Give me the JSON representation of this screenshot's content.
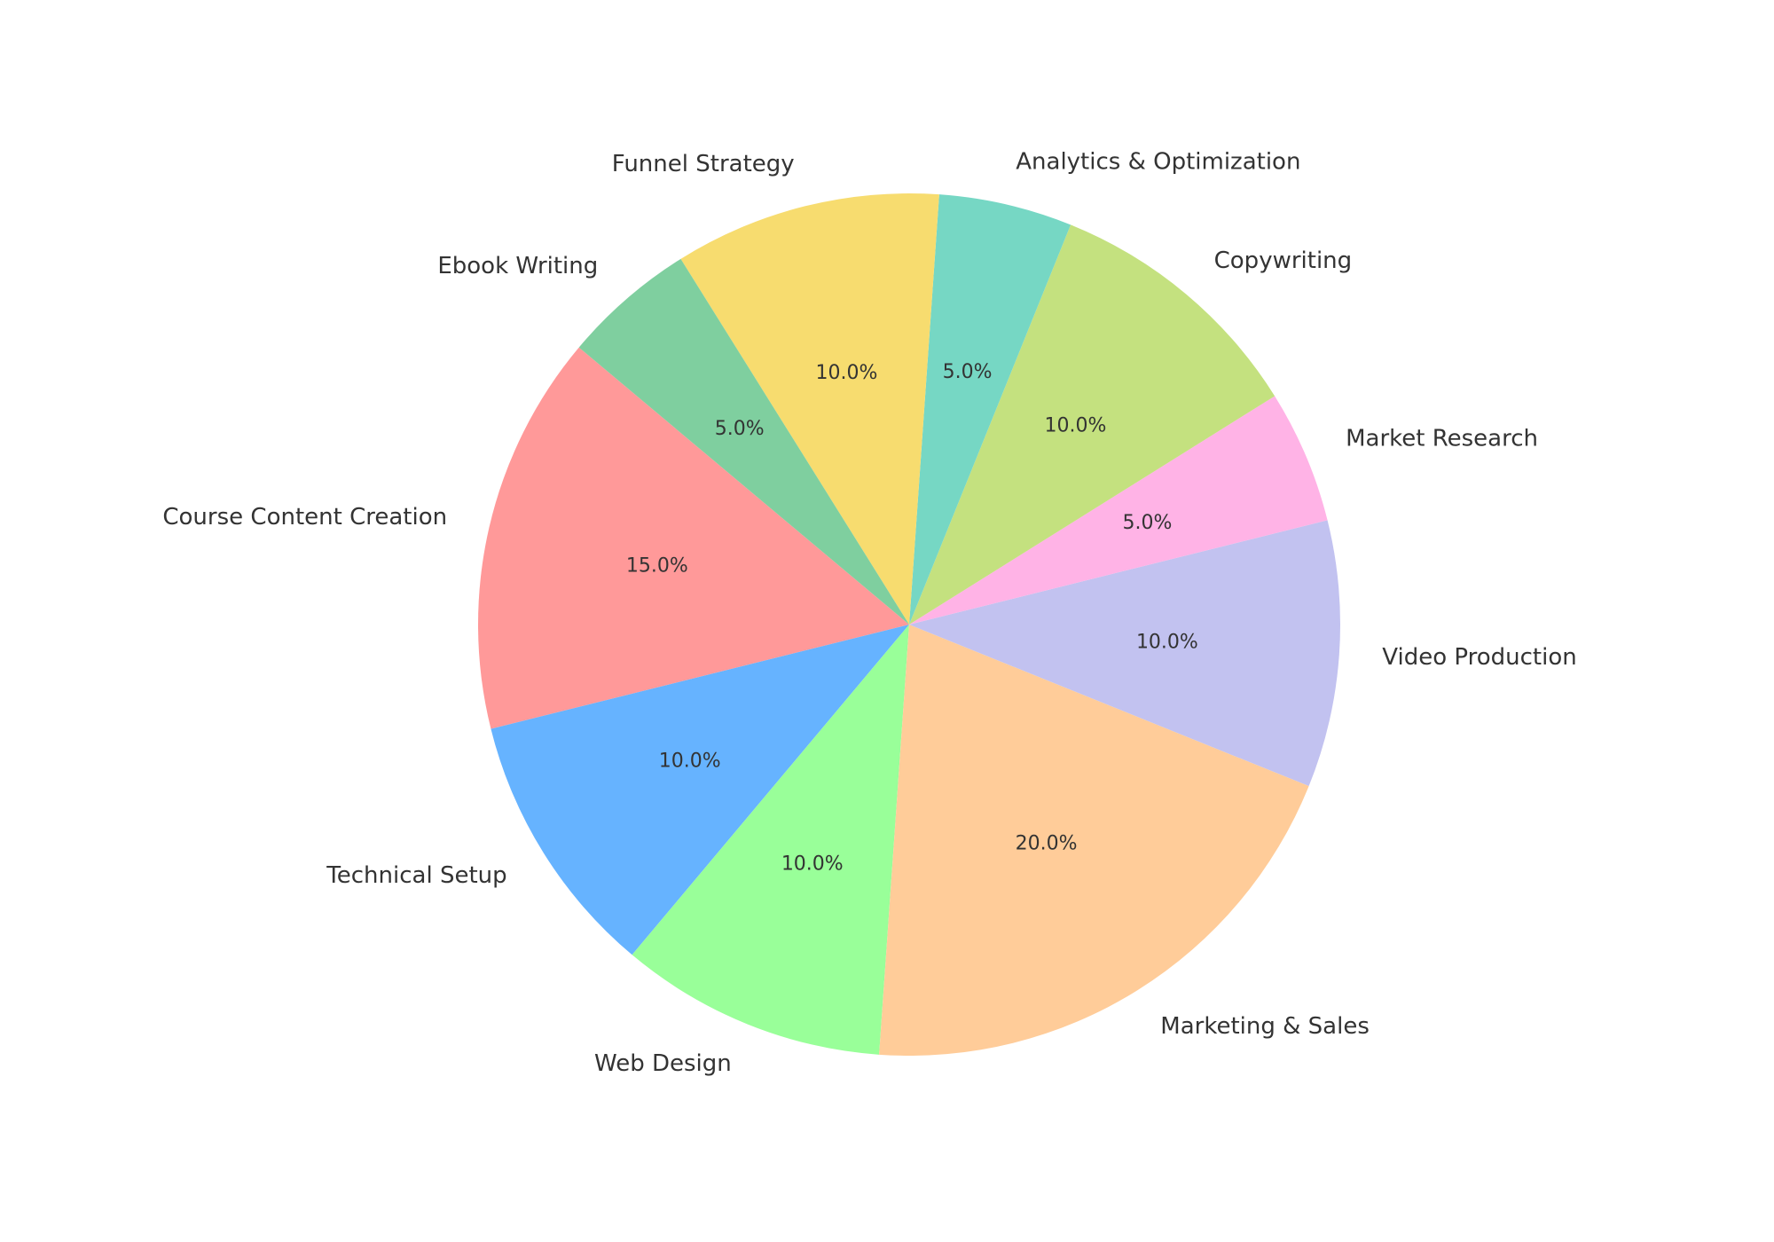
{
  "chart_data": {
    "type": "pie",
    "categories": [
      "Course Content Creation",
      "Technical Setup",
      "Web Design",
      "Marketing & Sales",
      "Video Production",
      "Market Research",
      "Copywriting",
      "Analytics & Optimization",
      "Funnel Strategy",
      "Ebook Writing"
    ],
    "values": [
      15,
      10,
      10,
      20,
      10,
      5,
      10,
      5,
      10,
      5
    ],
    "value_labels": [
      "15.0%",
      "10.0%",
      "10.0%",
      "20.0%",
      "10.0%",
      "5.0%",
      "10.0%",
      "5.0%",
      "10.0%",
      "5.0%"
    ],
    "colors": [
      "#ff9999",
      "#66b3ff",
      "#99ff99",
      "#ffcc99",
      "#c2c2f0",
      "#ffb3e6",
      "#c4e17f",
      "#76d7c4",
      "#f7dc6f",
      "#7fcf9f"
    ],
    "start_angle": 140
  }
}
